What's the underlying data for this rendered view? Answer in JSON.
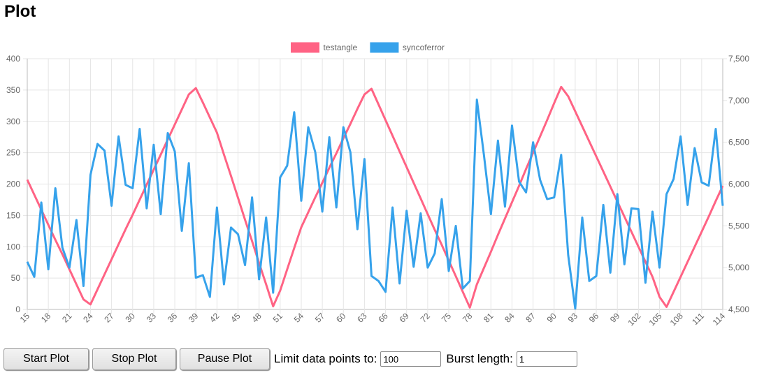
{
  "header": {
    "title": "Plot"
  },
  "chart_data": {
    "type": "line",
    "x": [
      15,
      16,
      17,
      18,
      19,
      20,
      21,
      22,
      23,
      24,
      25,
      26,
      27,
      28,
      29,
      30,
      31,
      32,
      33,
      34,
      35,
      36,
      37,
      38,
      39,
      40,
      41,
      42,
      43,
      44,
      45,
      46,
      47,
      48,
      49,
      50,
      51,
      52,
      53,
      54,
      55,
      56,
      57,
      58,
      59,
      60,
      61,
      62,
      63,
      64,
      65,
      66,
      67,
      68,
      69,
      70,
      71,
      72,
      73,
      74,
      75,
      76,
      77,
      78,
      79,
      80,
      81,
      82,
      83,
      84,
      85,
      86,
      87,
      88,
      89,
      90,
      91,
      92,
      93,
      94,
      95,
      96,
      97,
      98,
      99,
      100,
      101,
      102,
      103,
      104,
      105,
      106,
      107,
      108,
      109,
      110,
      111,
      112,
      113,
      114
    ],
    "xlim": [
      15,
      114
    ],
    "xticks": [
      15,
      18,
      21,
      24,
      27,
      30,
      33,
      36,
      39,
      42,
      45,
      48,
      51,
      54,
      57,
      60,
      63,
      66,
      69,
      72,
      75,
      78,
      81,
      84,
      87,
      90,
      93,
      96,
      99,
      102,
      105,
      108,
      111,
      114
    ],
    "ylim": [
      0,
      400
    ],
    "yticks": [
      0,
      50,
      100,
      150,
      200,
      250,
      300,
      350,
      400
    ],
    "y2lim": [
      4500,
      7500
    ],
    "y2ticks": [
      {
        "value": 4500,
        "label": "4,500"
      },
      {
        "value": 5000,
        "label": "5,000"
      },
      {
        "value": 5500,
        "label": "5,500"
      },
      {
        "value": 6000,
        "label": "6,000"
      },
      {
        "value": 6500,
        "label": "6,500"
      },
      {
        "value": 7000,
        "label": "7,000"
      },
      {
        "value": 7500,
        "label": "7,500"
      }
    ],
    "grid": true,
    "legend": "top",
    "series": [
      {
        "name": "testangle",
        "color": "#ff6384",
        "axis": "y",
        "values": [
          207,
          183,
          159,
          135,
          111,
          88,
          64,
          40,
          16,
          8,
          32,
          56,
          80,
          104,
          128,
          151,
          175,
          199,
          223,
          247,
          271,
          295,
          319,
          343,
          353,
          330,
          306,
          282,
          247,
          213,
          178,
          143,
          109,
          74,
          40,
          5,
          30,
          64,
          98,
          131,
          155,
          179,
          202,
          226,
          249,
          273,
          296,
          320,
          343,
          352,
          327,
          302,
          277,
          252,
          227,
          202,
          177,
          152,
          127,
          103,
          78,
          53,
          28,
          3,
          40,
          66,
          92,
          119,
          145,
          171,
          197,
          224,
          250,
          276,
          302,
          329,
          355,
          340,
          316,
          292,
          268,
          244,
          220,
          196,
          172,
          148,
          124,
          100,
          76,
          52,
          20,
          4,
          28,
          52,
          76,
          100,
          124,
          148,
          173,
          197
        ]
      },
      {
        "name": "syncoferror",
        "color": "#36a2eb",
        "axis": "y2",
        "values": [
          5070,
          4890,
          5780,
          4980,
          5950,
          5240,
          5000,
          5570,
          4780,
          6110,
          6480,
          6400,
          5740,
          6570,
          5990,
          5950,
          6660,
          5710,
          6470,
          5640,
          6610,
          6390,
          5440,
          6250,
          4880,
          4910,
          4650,
          5720,
          4800,
          5480,
          5400,
          5030,
          5840,
          4860,
          5600,
          4700,
          6080,
          6220,
          6860,
          5800,
          6680,
          6380,
          5670,
          6560,
          5720,
          6680,
          6380,
          5460,
          6300,
          4900,
          4840,
          4710,
          5720,
          4810,
          5680,
          5010,
          5650,
          5000,
          5170,
          5820,
          4960,
          5500,
          4750,
          4840,
          7010,
          6350,
          5640,
          6520,
          5730,
          6700,
          6030,
          5900,
          6500,
          6050,
          5820,
          5840,
          6350,
          5150,
          4510,
          5600,
          4840,
          4900,
          5750,
          4940,
          5880,
          5040,
          5710,
          5700,
          4820,
          5670,
          5000,
          5880,
          6060,
          6570,
          5750,
          6430,
          6020,
          5980,
          6660,
          5740
        ]
      }
    ]
  },
  "controls": {
    "start": "Start Plot",
    "stop": "Stop Plot",
    "pause": "Pause Plot",
    "limit_label": "Limit data points to:",
    "limit_value": 100,
    "burst_label": "Burst length:",
    "burst_value": 1
  }
}
